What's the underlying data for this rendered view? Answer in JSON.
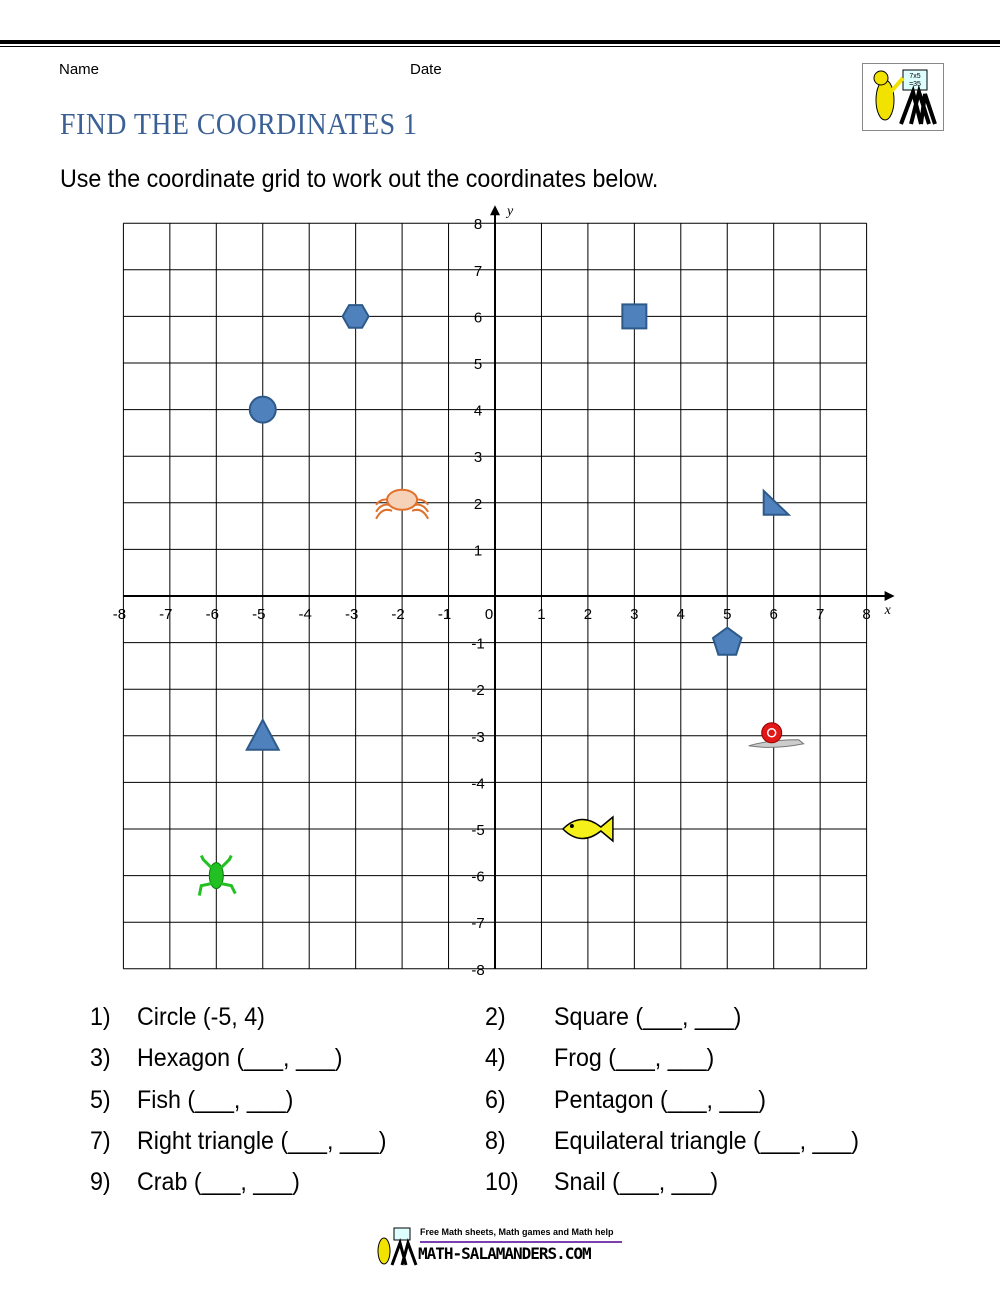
{
  "header": {
    "name_label": "Name",
    "date_label": "Date",
    "title": "FIND THE COORDINATES 1",
    "instruction": "Use the coordinate grid to work out the coordinates below."
  },
  "logo": {
    "text": "7x5 = 35",
    "brand": "Math-Salamanders"
  },
  "grid": {
    "xlim": [
      -8,
      8
    ],
    "ylim": [
      -8,
      8
    ],
    "x_label": "x",
    "y_label": "y",
    "x_ticks": [
      "-8",
      "-7",
      "-6",
      "-5",
      "-4",
      "-3",
      "-2",
      "-1",
      "0",
      "1",
      "2",
      "3",
      "4",
      "5",
      "6",
      "7",
      "8"
    ],
    "y_ticks": [
      "8",
      "7",
      "6",
      "5",
      "4",
      "3",
      "2",
      "1",
      "-1",
      "-2",
      "-3",
      "-4",
      "-5",
      "-6",
      "-7",
      "-8"
    ],
    "shape_color": "#4f81bd",
    "objects": [
      {
        "name": "circle",
        "x": -5,
        "y": 4
      },
      {
        "name": "hexagon",
        "x": -3,
        "y": 6
      },
      {
        "name": "square",
        "x": 3,
        "y": 6
      },
      {
        "name": "right-triangle",
        "x": 6,
        "y": 2
      },
      {
        "name": "pentagon",
        "x": 5,
        "y": -1
      },
      {
        "name": "equilateral-triangle",
        "x": -5,
        "y": -3
      },
      {
        "name": "crab",
        "x": -2,
        "y": 2
      },
      {
        "name": "snail",
        "x": 6,
        "y": -3
      },
      {
        "name": "fish",
        "x": 2,
        "y": -5
      },
      {
        "name": "frog",
        "x": -6,
        "y": -6
      }
    ]
  },
  "questions": [
    {
      "num": "1)",
      "text": "Circle (-5, 4)"
    },
    {
      "num": "2)",
      "text": "Square (___, ___)"
    },
    {
      "num": "3)",
      "text": "Hexagon (___, ___)"
    },
    {
      "num": "4)",
      "text": "Frog (___, ___)"
    },
    {
      "num": "5)",
      "text": "Fish (___, ___)"
    },
    {
      "num": "6)",
      "text": "Pentagon (___, ___)"
    },
    {
      "num": "7)",
      "text": "Right triangle (___, ___)"
    },
    {
      "num": "8)",
      "text": "Equilateral triangle (___, ___)"
    },
    {
      "num": "9)",
      "text": "Crab (___, ___)"
    },
    {
      "num": "10)",
      "text": "Snail (___, ___)"
    }
  ],
  "footer": {
    "tagline": "Free Math sheets, Math games and Math help",
    "site": "MATH-SALAMANDERS.COM"
  }
}
